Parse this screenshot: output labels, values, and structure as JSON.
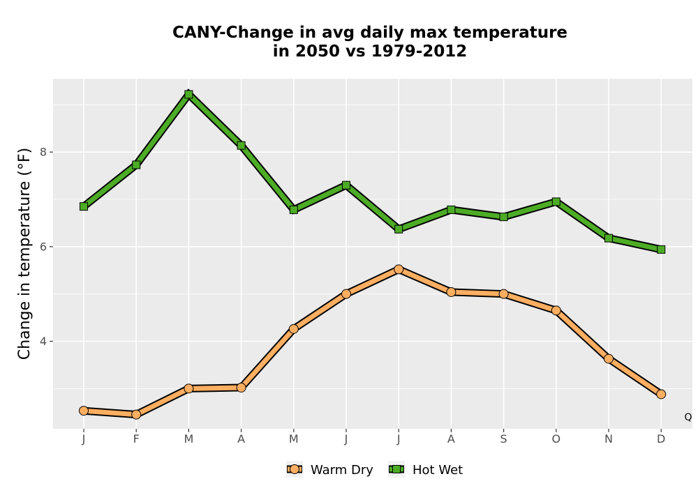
{
  "chart_data": {
    "type": "line",
    "title_line1": "CANY-Change in avg daily max temperature",
    "title_line2": "in 2050 vs 1979-2012",
    "xlabel": "",
    "ylabel": "Change in temperature (°F)",
    "categories": [
      "J",
      "F",
      "M",
      "A",
      "M",
      "J",
      "J",
      "A",
      "S",
      "O",
      "N",
      "D"
    ],
    "y_ticks": [
      4,
      6,
      8
    ],
    "ylim": [
      2.15,
      9.55
    ],
    "grid": true,
    "legend_position": "bottom",
    "series": [
      {
        "name": "Warm Dry",
        "marker": "circle",
        "color": "#fdae61",
        "values": [
          2.53,
          2.45,
          3.0,
          3.02,
          4.26,
          5.0,
          5.52,
          5.04,
          5.0,
          4.65,
          3.63,
          2.88
        ]
      },
      {
        "name": "Hot Wet",
        "marker": "square",
        "color": "#4dac26",
        "values": [
          6.85,
          7.73,
          9.22,
          8.14,
          6.78,
          7.3,
          6.37,
          6.78,
          6.63,
          6.95,
          6.18,
          5.94
        ]
      }
    ],
    "corner_note": "Q"
  }
}
